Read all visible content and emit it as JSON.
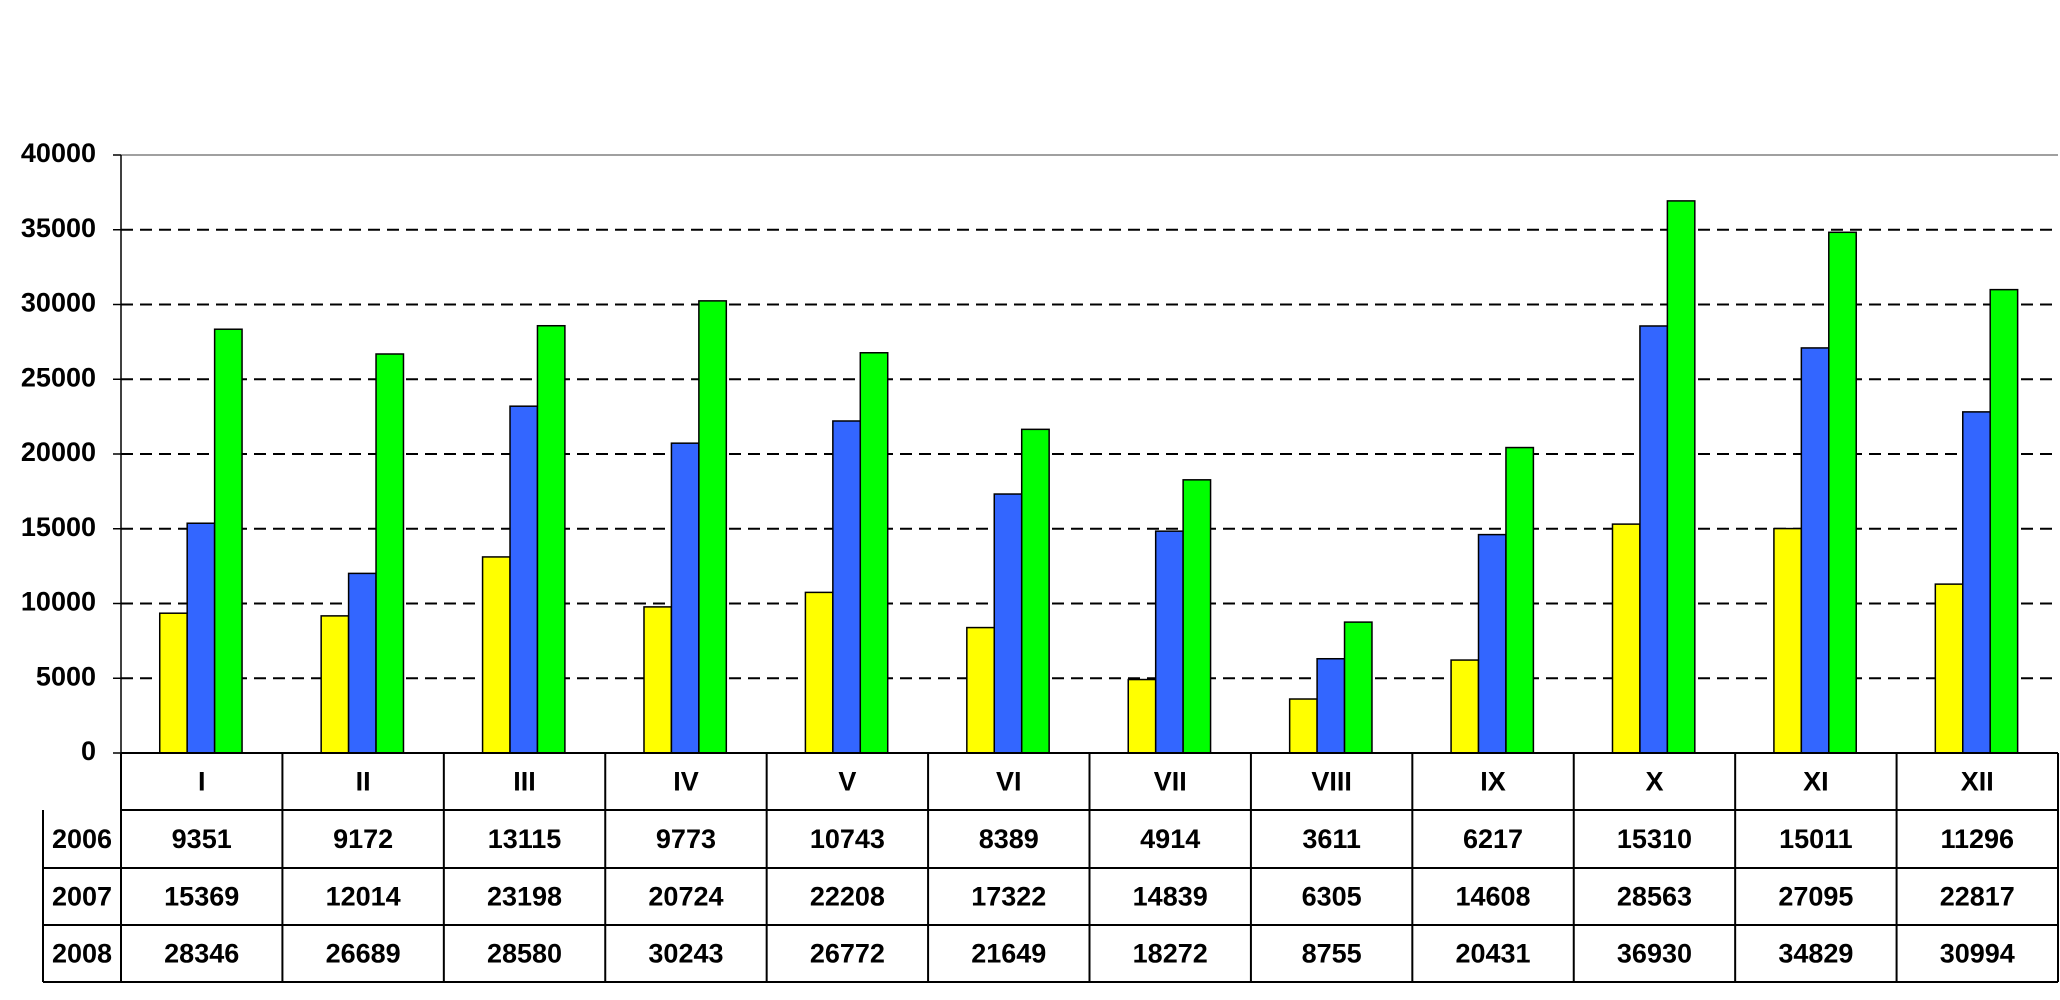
{
  "chart_data": {
    "type": "bar",
    "categories": [
      "I",
      "II",
      "III",
      "IV",
      "V",
      "VI",
      "VII",
      "VIII",
      "IX",
      "X",
      "XI",
      "XII"
    ],
    "series": [
      {
        "name": "2006",
        "color": "#ffff00",
        "values": [
          9351,
          9172,
          13115,
          9773,
          10743,
          8389,
          4914,
          3611,
          6217,
          15310,
          15011,
          11296
        ]
      },
      {
        "name": "2007",
        "color": "#3366ff",
        "values": [
          15369,
          12014,
          23198,
          20724,
          22208,
          17322,
          14839,
          6305,
          14608,
          28563,
          27095,
          22817
        ]
      },
      {
        "name": "2008",
        "color": "#00ff00",
        "values": [
          28346,
          26689,
          28580,
          30243,
          26772,
          21649,
          18272,
          8755,
          20431,
          36930,
          34829,
          30994
        ]
      }
    ],
    "ylim": [
      0,
      40000
    ],
    "yticks": [
      0,
      5000,
      10000,
      15000,
      20000,
      25000,
      30000,
      35000,
      40000
    ],
    "grid": true
  }
}
